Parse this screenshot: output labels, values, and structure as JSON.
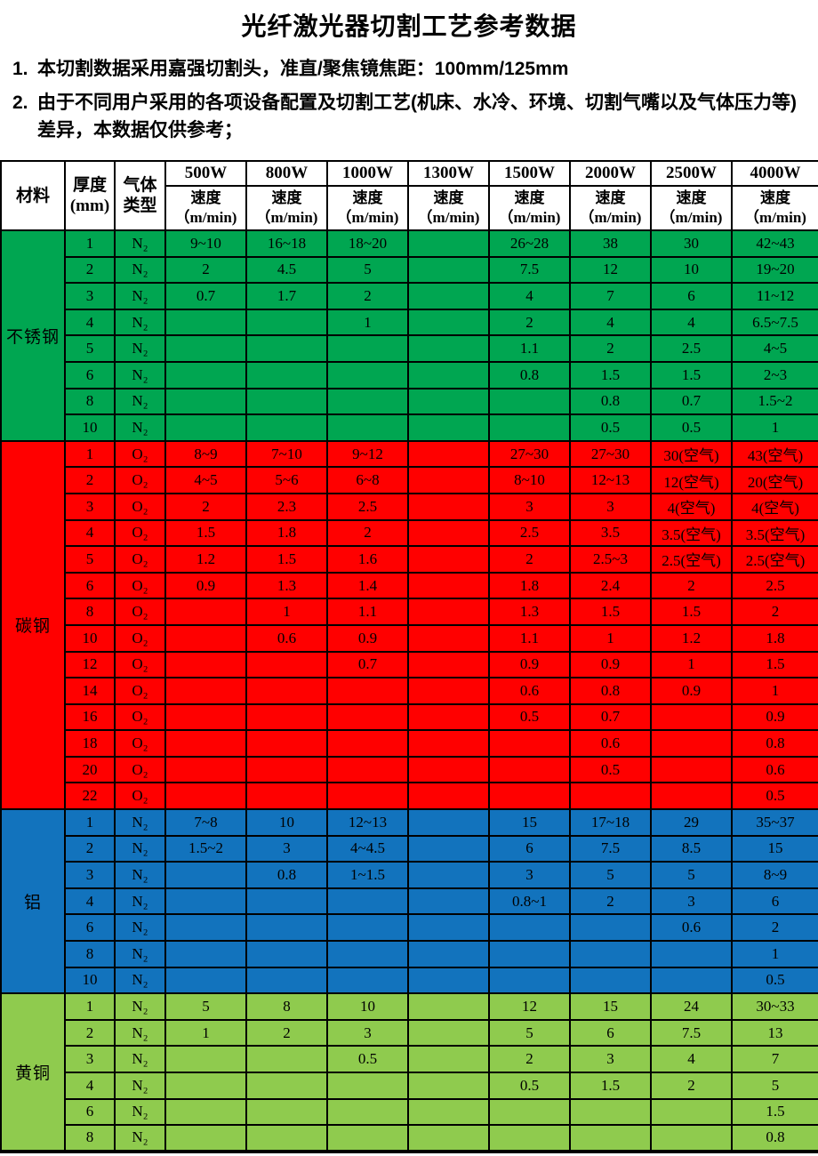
{
  "page": {
    "title": "光纤激光器切割工艺参考数据"
  },
  "notes": [
    {
      "num": "1.",
      "text": "本切割数据采用嘉强切割头，准直/聚焦镜焦距：100mm/125mm"
    },
    {
      "num": "2.",
      "text": "由于不同用户采用的各项设备配置及切割工艺(机床、水冷、环境、切割气嘴以及气体压力等)差异，本数据仅供参考；"
    }
  ],
  "table": {
    "corner": {
      "material": "材料",
      "thickness_line1": "厚度",
      "thickness_line2": "(mm)",
      "gas_line1": "气体",
      "gas_line2": "类型"
    },
    "power_headers": [
      "500W",
      "800W",
      "1000W",
      "1300W",
      "1500W",
      "2000W",
      "2500W",
      "4000W"
    ],
    "speed_line1": "速度",
    "speed_line2": "（m/min)",
    "sections": [
      {
        "material": "不锈钢",
        "color": "#00a651",
        "rows": [
          {
            "thickness": "1",
            "gas": "N₂",
            "speeds": [
              "9~10",
              "16~18",
              "18~20",
              "",
              "26~28",
              "38",
              "30",
              "42~43"
            ]
          },
          {
            "thickness": "2",
            "gas": "N₂",
            "speeds": [
              "2",
              "4.5",
              "5",
              "",
              "7.5",
              "12",
              "10",
              "19~20"
            ]
          },
          {
            "thickness": "3",
            "gas": "N₂",
            "speeds": [
              "0.7",
              "1.7",
              "2",
              "",
              "4",
              "7",
              "6",
              "11~12"
            ]
          },
          {
            "thickness": "4",
            "gas": "N₂",
            "speeds": [
              "",
              "",
              "1",
              "",
              "2",
              "4",
              "4",
              "6.5~7.5"
            ]
          },
          {
            "thickness": "5",
            "gas": "N₂",
            "speeds": [
              "",
              "",
              "",
              "",
              "1.1",
              "2",
              "2.5",
              "4~5"
            ]
          },
          {
            "thickness": "6",
            "gas": "N₂",
            "speeds": [
              "",
              "",
              "",
              "",
              "0.8",
              "1.5",
              "1.5",
              "2~3"
            ]
          },
          {
            "thickness": "8",
            "gas": "N₂",
            "speeds": [
              "",
              "",
              "",
              "",
              "",
              "0.8",
              "0.7",
              "1.5~2"
            ]
          },
          {
            "thickness": "10",
            "gas": "N₂",
            "speeds": [
              "",
              "",
              "",
              "",
              "",
              "0.5",
              "0.5",
              "1"
            ]
          }
        ]
      },
      {
        "material": "碳钢",
        "color": "#ff0000",
        "rows": [
          {
            "thickness": "1",
            "gas": "O₂",
            "speeds": [
              "8~9",
              "7~10",
              "9~12",
              "",
              "27~30",
              "27~30",
              "30(空气)",
              "43(空气)"
            ]
          },
          {
            "thickness": "2",
            "gas": "O₂",
            "speeds": [
              "4~5",
              "5~6",
              "6~8",
              "",
              "8~10",
              "12~13",
              "12(空气)",
              "20(空气)"
            ]
          },
          {
            "thickness": "3",
            "gas": "O₂",
            "speeds": [
              "2",
              "2.3",
              "2.5",
              "",
              "3",
              "3",
              "4(空气)",
              "4(空气)"
            ]
          },
          {
            "thickness": "4",
            "gas": "O₂",
            "speeds": [
              "1.5",
              "1.8",
              "2",
              "",
              "2.5",
              "3.5",
              "3.5(空气)",
              "3.5(空气)"
            ]
          },
          {
            "thickness": "5",
            "gas": "O₂",
            "speeds": [
              "1.2",
              "1.5",
              "1.6",
              "",
              "2",
              "2.5~3",
              "2.5(空气)",
              "2.5(空气)"
            ]
          },
          {
            "thickness": "6",
            "gas": "O₂",
            "speeds": [
              "0.9",
              "1.3",
              "1.4",
              "",
              "1.8",
              "2.4",
              "2",
              "2.5"
            ]
          },
          {
            "thickness": "8",
            "gas": "O₂",
            "speeds": [
              "",
              "1",
              "1.1",
              "",
              "1.3",
              "1.5",
              "1.5",
              "2"
            ]
          },
          {
            "thickness": "10",
            "gas": "O₂",
            "speeds": [
              "",
              "0.6",
              "0.9",
              "",
              "1.1",
              "1",
              "1.2",
              "1.8"
            ]
          },
          {
            "thickness": "12",
            "gas": "O₂",
            "speeds": [
              "",
              "",
              "0.7",
              "",
              "0.9",
              "0.9",
              "1",
              "1.5"
            ]
          },
          {
            "thickness": "14",
            "gas": "O₂",
            "speeds": [
              "",
              "",
              "",
              "",
              "0.6",
              "0.8",
              "0.9",
              "1"
            ]
          },
          {
            "thickness": "16",
            "gas": "O₂",
            "speeds": [
              "",
              "",
              "",
              "",
              "0.5",
              "0.7",
              "",
              "0.9"
            ]
          },
          {
            "thickness": "18",
            "gas": "O₂",
            "speeds": [
              "",
              "",
              "",
              "",
              "",
              "0.6",
              "",
              "0.8"
            ]
          },
          {
            "thickness": "20",
            "gas": "O₂",
            "speeds": [
              "",
              "",
              "",
              "",
              "",
              "0.5",
              "",
              "0.6"
            ]
          },
          {
            "thickness": "22",
            "gas": "O₂",
            "speeds": [
              "",
              "",
              "",
              "",
              "",
              "",
              "",
              "0.5"
            ]
          }
        ]
      },
      {
        "material": "铝",
        "color": "#1273bd",
        "rows": [
          {
            "thickness": "1",
            "gas": "N₂",
            "speeds": [
              "7~8",
              "10",
              "12~13",
              "",
              "15",
              "17~18",
              "29",
              "35~37"
            ]
          },
          {
            "thickness": "2",
            "gas": "N₂",
            "speeds": [
              "1.5~2",
              "3",
              "4~4.5",
              "",
              "6",
              "7.5",
              "8.5",
              "15"
            ]
          },
          {
            "thickness": "3",
            "gas": "N₂",
            "speeds": [
              "",
              "0.8",
              "1~1.5",
              "",
              "3",
              "5",
              "5",
              "8~9"
            ]
          },
          {
            "thickness": "4",
            "gas": "N₂",
            "speeds": [
              "",
              "",
              "",
              "",
              "0.8~1",
              "2",
              "3",
              "6"
            ]
          },
          {
            "thickness": "6",
            "gas": "N₂",
            "speeds": [
              "",
              "",
              "",
              "",
              "",
              "",
              "0.6",
              "2"
            ]
          },
          {
            "thickness": "8",
            "gas": "N₂",
            "speeds": [
              "",
              "",
              "",
              "",
              "",
              "",
              "",
              "1"
            ]
          },
          {
            "thickness": "10",
            "gas": "N₂",
            "speeds": [
              "",
              "",
              "",
              "",
              "",
              "",
              "",
              "0.5"
            ]
          }
        ]
      },
      {
        "material": "黄铜",
        "color": "#8fcb4e",
        "rows": [
          {
            "thickness": "1",
            "gas": "N₂",
            "speeds": [
              "5",
              "8",
              "10",
              "",
              "12",
              "15",
              "24",
              "30~33"
            ]
          },
          {
            "thickness": "2",
            "gas": "N₂",
            "speeds": [
              "1",
              "2",
              "3",
              "",
              "5",
              "6",
              "7.5",
              "13"
            ]
          },
          {
            "thickness": "3",
            "gas": "N₂",
            "speeds": [
              "",
              "",
              "0.5",
              "",
              "2",
              "3",
              "4",
              "7"
            ]
          },
          {
            "thickness": "4",
            "gas": "N₂",
            "speeds": [
              "",
              "",
              "",
              "",
              "0.5",
              "1.5",
              "2",
              "5"
            ]
          },
          {
            "thickness": "6",
            "gas": "N₂",
            "speeds": [
              "",
              "",
              "",
              "",
              "",
              "",
              "",
              "1.5"
            ]
          },
          {
            "thickness": "8",
            "gas": "N₂",
            "speeds": [
              "",
              "",
              "",
              "",
              "",
              "",
              "",
              "0.8"
            ]
          }
        ]
      }
    ]
  }
}
